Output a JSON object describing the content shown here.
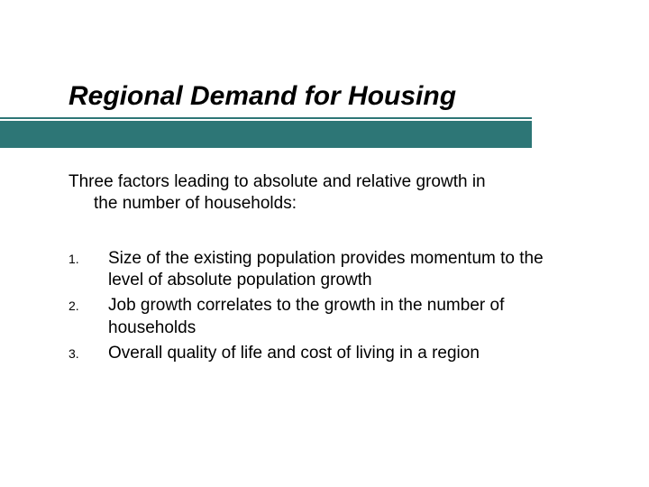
{
  "slide": {
    "title": "Regional Demand for Housing",
    "intro_line1": "Three factors leading to absolute and relative growth in",
    "intro_line2": "the number of households:",
    "items": [
      {
        "num": "1.",
        "text": "Size of the existing population provides momentum to the level of absolute population growth"
      },
      {
        "num": "2.",
        "text": "Job growth correlates to the growth in the number of households"
      },
      {
        "num": "3.",
        "text": "Overall quality of life and cost of living in a region"
      }
    ]
  },
  "style": {
    "accent_color": "#2d7676",
    "bullet_ring_color": "#c8b84d",
    "text_color": "#000000",
    "background_color": "#ffffff",
    "title_fontsize": 30,
    "body_fontsize": 19,
    "number_fontsize": 14
  }
}
